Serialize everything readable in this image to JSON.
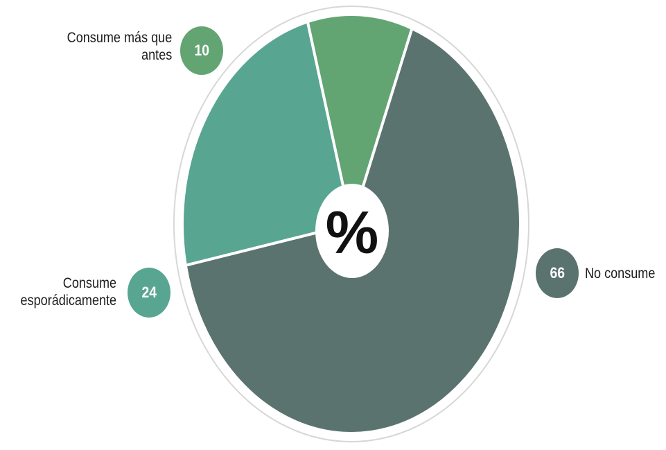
{
  "chart_data": {
    "type": "pie",
    "title": "",
    "center_label": "%",
    "slices": [
      {
        "label_lines": [
          "No consume"
        ],
        "value": 66,
        "value_label": "66",
        "color": "#5b736e"
      },
      {
        "label_lines": [
          "Consume",
          "esporádicamente"
        ],
        "value": 24,
        "value_label": "24",
        "color": "#58a592"
      },
      {
        "label_lines": [
          "Consume más que",
          "antes"
        ],
        "value": 10,
        "value_label": "10",
        "color": "#63a473"
      }
    ]
  }
}
